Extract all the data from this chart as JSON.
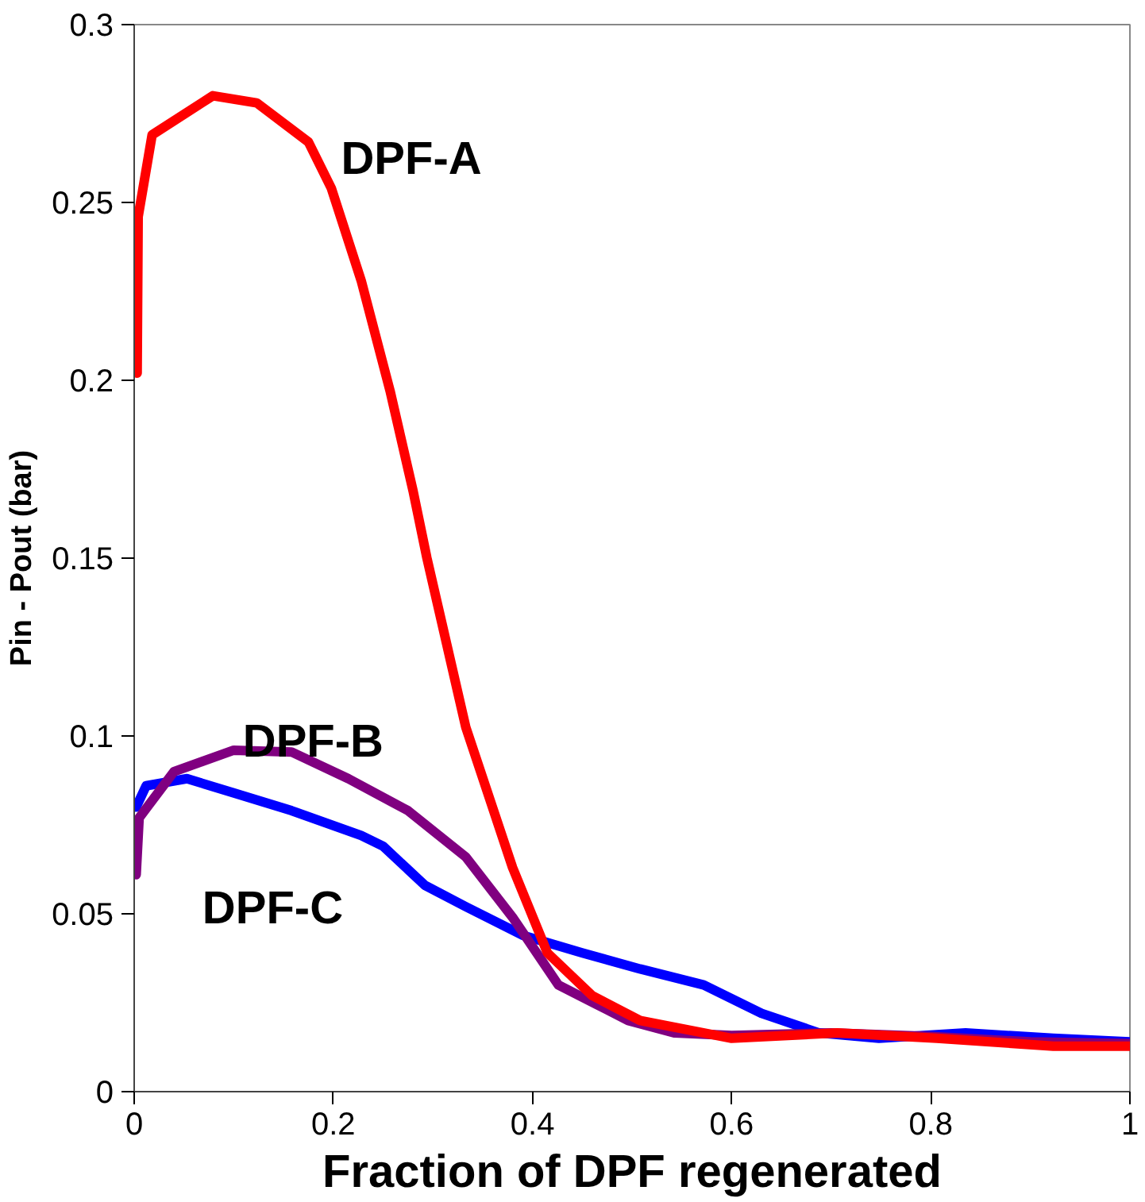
{
  "chart_data": {
    "type": "line",
    "xlabel": "Fraction of DPF regenerated",
    "ylabel": "Pin - Pout (bar)",
    "xlim": [
      0,
      1
    ],
    "ylim": [
      0,
      0.3
    ],
    "xticks": [
      0,
      0.2,
      0.4,
      0.6,
      0.8,
      1
    ],
    "yticks": [
      0,
      0.05,
      0.1,
      0.15,
      0.2,
      0.25,
      0.3
    ],
    "grid": false,
    "line_style": "solid",
    "marker": "none",
    "series": [
      {
        "name": "DPF-C",
        "color": "#0000ff",
        "x": [
          0.002,
          0.012,
          0.053,
          0.1,
          0.158,
          0.228,
          0.25,
          0.292,
          0.333,
          0.39,
          0.45,
          0.508,
          0.572,
          0.63,
          0.688,
          0.748,
          0.835,
          0.923,
          1.0
        ],
        "values": [
          0.08,
          0.086,
          0.088,
          0.084,
          0.079,
          0.072,
          0.069,
          0.058,
          0.052,
          0.044,
          0.039,
          0.0345,
          0.03,
          0.022,
          0.0165,
          0.015,
          0.0165,
          0.015,
          0.014
        ]
      },
      {
        "name": "DPF-B",
        "color": "#800080",
        "x": [
          0.002,
          0.005,
          0.04,
          0.1,
          0.158,
          0.215,
          0.275,
          0.333,
          0.38,
          0.426,
          0.496,
          0.543,
          0.6,
          0.7,
          0.8,
          0.9,
          1.0
        ],
        "values": [
          0.061,
          0.077,
          0.09,
          0.096,
          0.0955,
          0.088,
          0.079,
          0.066,
          0.049,
          0.03,
          0.02,
          0.0165,
          0.0158,
          0.0165,
          0.0155,
          0.014,
          0.0135
        ]
      },
      {
        "name": "DPF-A",
        "color": "#ff0000",
        "x": [
          0.003,
          0.004,
          0.018,
          0.079,
          0.123,
          0.175,
          0.198,
          0.228,
          0.257,
          0.28,
          0.294,
          0.333,
          0.38,
          0.415,
          0.46,
          0.508,
          0.6,
          0.706,
          0.806,
          0.923,
          1.0
        ],
        "values": [
          0.202,
          0.246,
          0.269,
          0.28,
          0.278,
          0.267,
          0.254,
          0.228,
          0.197,
          0.169,
          0.15,
          0.1025,
          0.063,
          0.039,
          0.027,
          0.02,
          0.015,
          0.0165,
          0.015,
          0.0128,
          0.0128
        ]
      }
    ]
  }
}
